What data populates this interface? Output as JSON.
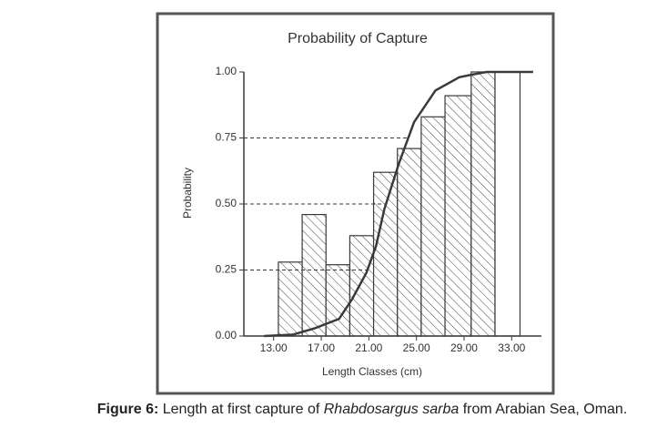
{
  "chart_data": {
    "type": "histogram_curve",
    "title": "Probability of Capture",
    "xlabel": "Length Classes (cm)",
    "ylabel": "Probability",
    "bins": [
      13.4,
      15.4,
      17.4,
      19.4,
      21.4,
      23.4,
      25.4,
      27.4,
      29.6,
      31.6,
      33.7
    ],
    "values": [
      0.28,
      0.46,
      0.27,
      0.38,
      0.62,
      0.71,
      0.83,
      0.91,
      1.0,
      1.0
    ],
    "hatched": [
      true,
      true,
      true,
      true,
      true,
      true,
      true,
      true,
      true,
      false
    ],
    "curve": {
      "x": [
        12.2,
        14.6,
        16.5,
        18.5,
        19.6,
        20.8,
        21.6,
        22.3,
        23.5,
        24.8,
        26.6,
        28.6,
        29.7,
        30.9,
        34.8
      ],
      "y": [
        0,
        0.005,
        0.03,
        0.065,
        0.14,
        0.24,
        0.34,
        0.48,
        0.65,
        0.81,
        0.93,
        0.98,
        0.99,
        1.0,
        1.0
      ]
    },
    "reference_lines": [
      0.25,
      0.5,
      0.75
    ],
    "color": "#3a3a3a",
    "xlim": [
      10.5,
      35.5
    ],
    "ylim": [
      0,
      1
    ],
    "xticks": [
      {
        "value": 13,
        "label": "13.00"
      },
      {
        "value": 17,
        "label": "17.00"
      },
      {
        "value": 21,
        "label": "21.00"
      },
      {
        "value": 25,
        "label": "25.00"
      },
      {
        "value": 29,
        "label": "29.00"
      },
      {
        "value": 33,
        "label": "33.00"
      }
    ],
    "yticks": [
      {
        "value": 0,
        "label": "0.00"
      },
      {
        "value": 0.25,
        "label": "0.25"
      },
      {
        "value": 0.5,
        "label": "0.50"
      },
      {
        "value": 0.75,
        "label": "0.75"
      },
      {
        "value": 1,
        "label": "1.00"
      }
    ]
  },
  "caption": {
    "label": "Figure 6:",
    "before": " Length at first capture of ",
    "species": "Rhabdosargus sarba",
    "after": " from Arabian Sea, Oman."
  }
}
